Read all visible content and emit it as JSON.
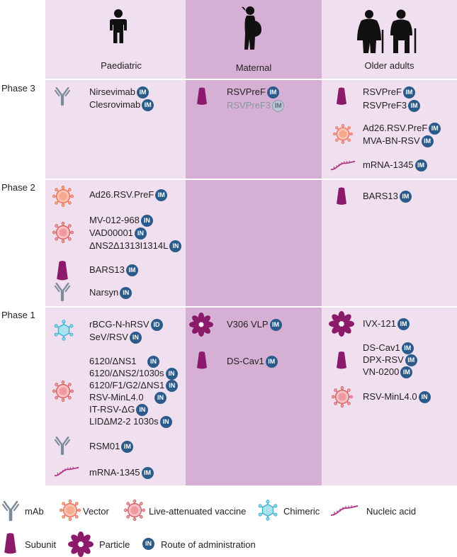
{
  "columns": {
    "paediatric": "Paediatric",
    "maternal": "Maternal",
    "older": "Older adults"
  },
  "phases": {
    "p3": "Phase 3",
    "p2": "Phase 2",
    "p1": "Phase 1"
  },
  "route": {
    "IM": "IM",
    "IN": "IN",
    "ID": "ID"
  },
  "paediatric": {
    "p3": [
      "Nirsevimab",
      "Clesrovimab"
    ],
    "p2": {
      "vector": "Ad26.RSV.PreF",
      "live": [
        "MV-012-968",
        "VAD00001",
        "ΔNS2Δ1313I1314L"
      ],
      "subunit": "BARS13",
      "mab": "Narsyn"
    },
    "p1": {
      "chimeric": [
        "rBCG-N-hRSV",
        "SeV/RSV"
      ],
      "live": [
        "6120/ΔNS1",
        "6120/ΔNS2/1030s",
        "6120/F1/G2/ΔNS1",
        "RSV-MinL4.0",
        "IT-RSV-ΔG",
        "LIDΔM2-2 1030s"
      ],
      "mab": "RSM01",
      "nucleic": "mRNA-1345"
    }
  },
  "maternal": {
    "p3": [
      "RSVPreF",
      "RSVPreF3"
    ],
    "p1": {
      "particle": "V306 VLP",
      "subunit": "DS-Cav1"
    }
  },
  "older": {
    "p3": {
      "subunit": [
        "RSVPreF",
        "RSVPreF3"
      ],
      "vector": [
        "Ad26.RSV.PreF",
        "MVA-BN-RSV"
      ],
      "nucleic": "mRNA-1345"
    },
    "p2": {
      "subunit": "BARS13"
    },
    "p1": {
      "particle": "IVX-121",
      "subunit": [
        "DS-Cav1",
        "DPX-RSV",
        "VN-0200"
      ],
      "live": "RSV-MinL4.0"
    }
  },
  "legend": {
    "mab": "mAb",
    "vector": "Vector",
    "live": "Live-attenuated vaccine",
    "chimeric": "Chimeric",
    "nucleic": "Nucleic acid",
    "subunit": "Subunit",
    "particle": "Particle",
    "route": "Route of administration"
  },
  "colors": {
    "column_light": "#f0e0ef",
    "column_maternal": "#d6b0d4",
    "badge": "#2b5b8a",
    "subunit": "#8b1a6b",
    "vector": "#f2876e",
    "live": "#e07a7a",
    "chimeric": "#5cc2de",
    "mab": "#7d8a99"
  }
}
